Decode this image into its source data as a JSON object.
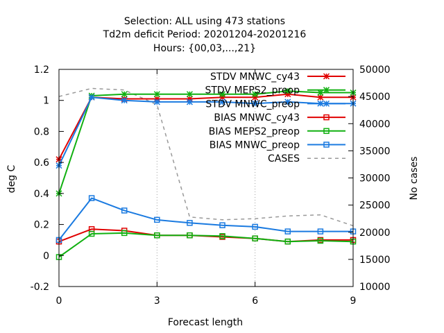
{
  "chart_data": {
    "type": "line",
    "title_lines": [
      "Selection: ALL using   473 stations",
      "Td2m deficit   Period: 20201204-20201216",
      "Hours: {00,03,...,21}"
    ],
    "xlabel": "Forecast length",
    "ylabel": "deg C",
    "y2label": "No cases",
    "xlim": [
      0,
      9
    ],
    "ylim": [
      -0.2,
      1.2
    ],
    "y2lim": [
      10000,
      50000
    ],
    "xticks": [
      0,
      3,
      6,
      9
    ],
    "yticks": [
      -0.2,
      0,
      0.2,
      0.4,
      0.6,
      0.8,
      1,
      1.2
    ],
    "yticklabels": [
      "-0.2",
      "0",
      "0.2",
      "0.4",
      "0.6",
      "0.8",
      "1",
      "1.2"
    ],
    "y2ticks": [
      10000,
      15000,
      20000,
      25000,
      30000,
      35000,
      40000,
      45000,
      50000
    ],
    "x": [
      0,
      1,
      2,
      3,
      4,
      5,
      6,
      7,
      8,
      9
    ],
    "series": [
      {
        "name": "STDV MNWC_cy43",
        "color": "#e00000",
        "marker": "star",
        "axis": "y1",
        "values": [
          0.62,
          1.02,
          1.01,
          1.01,
          1.01,
          1.02,
          1.02,
          1.04,
          1.02,
          1.02
        ]
      },
      {
        "name": "STDV MEPS2_preop",
        "color": "#10b010",
        "marker": "star",
        "axis": "y1",
        "values": [
          0.4,
          1.03,
          1.04,
          1.04,
          1.04,
          1.04,
          1.04,
          1.06,
          1.05,
          1.05
        ]
      },
      {
        "name": "STDV MNWC_preop",
        "color": "#1a7ae0",
        "marker": "star",
        "axis": "y1",
        "values": [
          0.58,
          1.02,
          1.0,
          0.99,
          0.99,
          0.99,
          0.98,
          0.99,
          0.98,
          0.98
        ]
      },
      {
        "name": "BIAS MNWC_cy43",
        "color": "#e00000",
        "marker": "square",
        "axis": "y1",
        "values": [
          0.09,
          0.17,
          0.16,
          0.13,
          0.13,
          0.12,
          0.11,
          0.09,
          0.1,
          0.1
        ]
      },
      {
        "name": "BIAS MEPS2_preop",
        "color": "#10b010",
        "marker": "square",
        "axis": "y1",
        "values": [
          -0.01,
          0.14,
          0.145,
          0.13,
          0.13,
          0.125,
          0.11,
          0.09,
          0.095,
          0.09
        ]
      },
      {
        "name": "BIAS MNWC_preop",
        "color": "#1a7ae0",
        "marker": "square",
        "axis": "y1",
        "values": [
          0.1,
          0.37,
          0.29,
          0.23,
          0.21,
          0.195,
          0.185,
          0.155,
          0.155,
          0.155
        ]
      },
      {
        "name": "CASES",
        "color": "#999999",
        "marker": "none",
        "dashed": true,
        "axis": "y2",
        "values": [
          45000,
          46500,
          46200,
          43500,
          22800,
          22300,
          22500,
          23000,
          23200,
          21200
        ]
      }
    ],
    "legend_position": "top-right"
  }
}
